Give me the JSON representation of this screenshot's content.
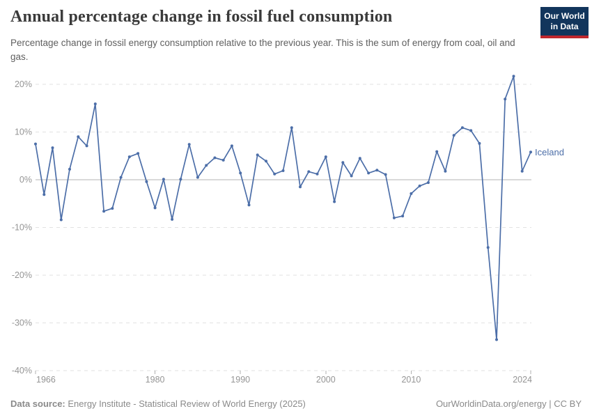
{
  "header": {
    "title": "Annual percentage change in fossil fuel consumption",
    "subtitle": "Percentage change in fossil energy consumption relative to the previous year. This is the sum of energy from coal, oil and gas.",
    "logo": {
      "line1": "Our World",
      "line2": "in Data"
    }
  },
  "footer": {
    "source_label": "Data source:",
    "source_text": " Energy Institute - Statistical Review of World Energy (2025)",
    "link_text": "OurWorldinData.org/energy | CC BY"
  },
  "colors": {
    "line": "#4C6EA8",
    "grid": "#e2e2e2",
    "zero_line": "#b3b3b3",
    "axis_text": "#959595",
    "tick_mark": "#b0b0b0",
    "title_text": "#3a3a3a",
    "subtitle_text": "#5f5f5f",
    "footer_text": "#8a8a8a",
    "logo_bg": "#12355c",
    "logo_bar": "#c0272d"
  },
  "chart_data": {
    "type": "line",
    "title": "Annual percentage change in fossil fuel consumption",
    "entity_label": "Iceland",
    "unit": "%",
    "ylim": [
      -40,
      20
    ],
    "y_ticks": [
      20,
      10,
      0,
      -10,
      -20,
      -30,
      -40
    ],
    "x_ticks": [
      1966,
      1980,
      1990,
      2000,
      2010,
      2024
    ],
    "grid": "horizontal-dashed, solid zero line, legend as end-of-line label",
    "x": [
      1966,
      1967,
      1968,
      1969,
      1970,
      1971,
      1972,
      1973,
      1974,
      1975,
      1976,
      1977,
      1978,
      1979,
      1980,
      1981,
      1982,
      1983,
      1984,
      1985,
      1986,
      1987,
      1988,
      1989,
      1990,
      1991,
      1992,
      1993,
      1994,
      1995,
      1996,
      1997,
      1998,
      1999,
      2000,
      2001,
      2002,
      2003,
      2004,
      2005,
      2006,
      2007,
      2008,
      2009,
      2010,
      2011,
      2012,
      2013,
      2014,
      2015,
      2016,
      2017,
      2018,
      2019,
      2020,
      2021,
      2022,
      2023,
      2024
    ],
    "values": [
      7.5,
      -3.1,
      6.7,
      -8.4,
      2.2,
      9.0,
      7.1,
      15.9,
      -6.6,
      -6.0,
      0.5,
      4.8,
      5.5,
      -0.4,
      -5.9,
      0.1,
      -8.3,
      0.1,
      7.4,
      0.5,
      3.0,
      4.6,
      4.1,
      7.1,
      1.4,
      -5.3,
      5.2,
      3.9,
      1.2,
      1.9,
      10.9,
      -1.5,
      1.7,
      1.2,
      4.8,
      -4.6,
      3.6,
      0.8,
      4.5,
      1.4,
      2.0,
      1.1,
      -8.0,
      -7.6,
      -2.9,
      -1.3,
      -0.6,
      5.9,
      1.8,
      9.3,
      10.9,
      10.3,
      7.6,
      -14.2,
      -33.5,
      16.9,
      21.7,
      1.8,
      5.8
    ]
  }
}
